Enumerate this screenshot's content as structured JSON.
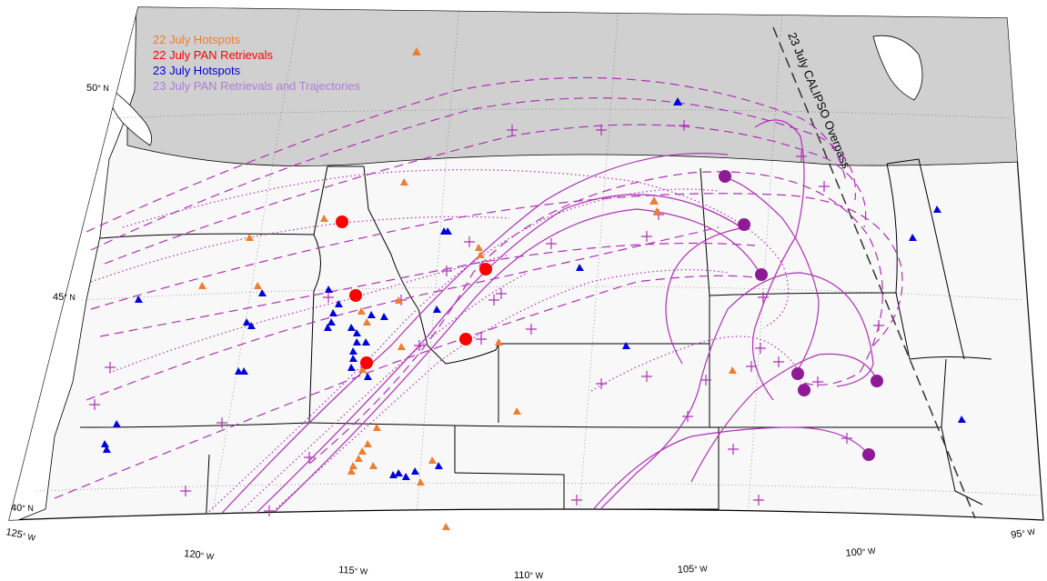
{
  "legend": [
    {
      "label": "22 July Hotspots",
      "color": "#ed7d31"
    },
    {
      "label": "22 July PAN Retrievals",
      "color": "#ff0000"
    },
    {
      "label": "23 July Hotspots",
      "color": "#0000dd"
    },
    {
      "label": "23 July PAN Retrievals and Trajectories",
      "color": "#b07cd8"
    }
  ],
  "lat_labels": [
    {
      "value": "50",
      "unit": "° N"
    },
    {
      "value": "45",
      "unit": "° N"
    },
    {
      "value": "40",
      "unit": "° N"
    }
  ],
  "lon_labels": [
    {
      "value": "125",
      "unit": "° W"
    },
    {
      "value": "120",
      "unit": "° W"
    },
    {
      "value": "115",
      "unit": "° W"
    },
    {
      "value": "110",
      "unit": "° W"
    },
    {
      "value": "105",
      "unit": "° W"
    },
    {
      "value": "100",
      "unit": "° W"
    },
    {
      "value": "95",
      "unit": "° W"
    }
  ],
  "overpass_label": "23 July CALIPSO Overpass",
  "colors": {
    "canada_fill": "#d0d0d0",
    "us_fill": "#f8f8f8",
    "trajectory": "#b030b8",
    "pan_23": "#8e1a96"
  }
}
